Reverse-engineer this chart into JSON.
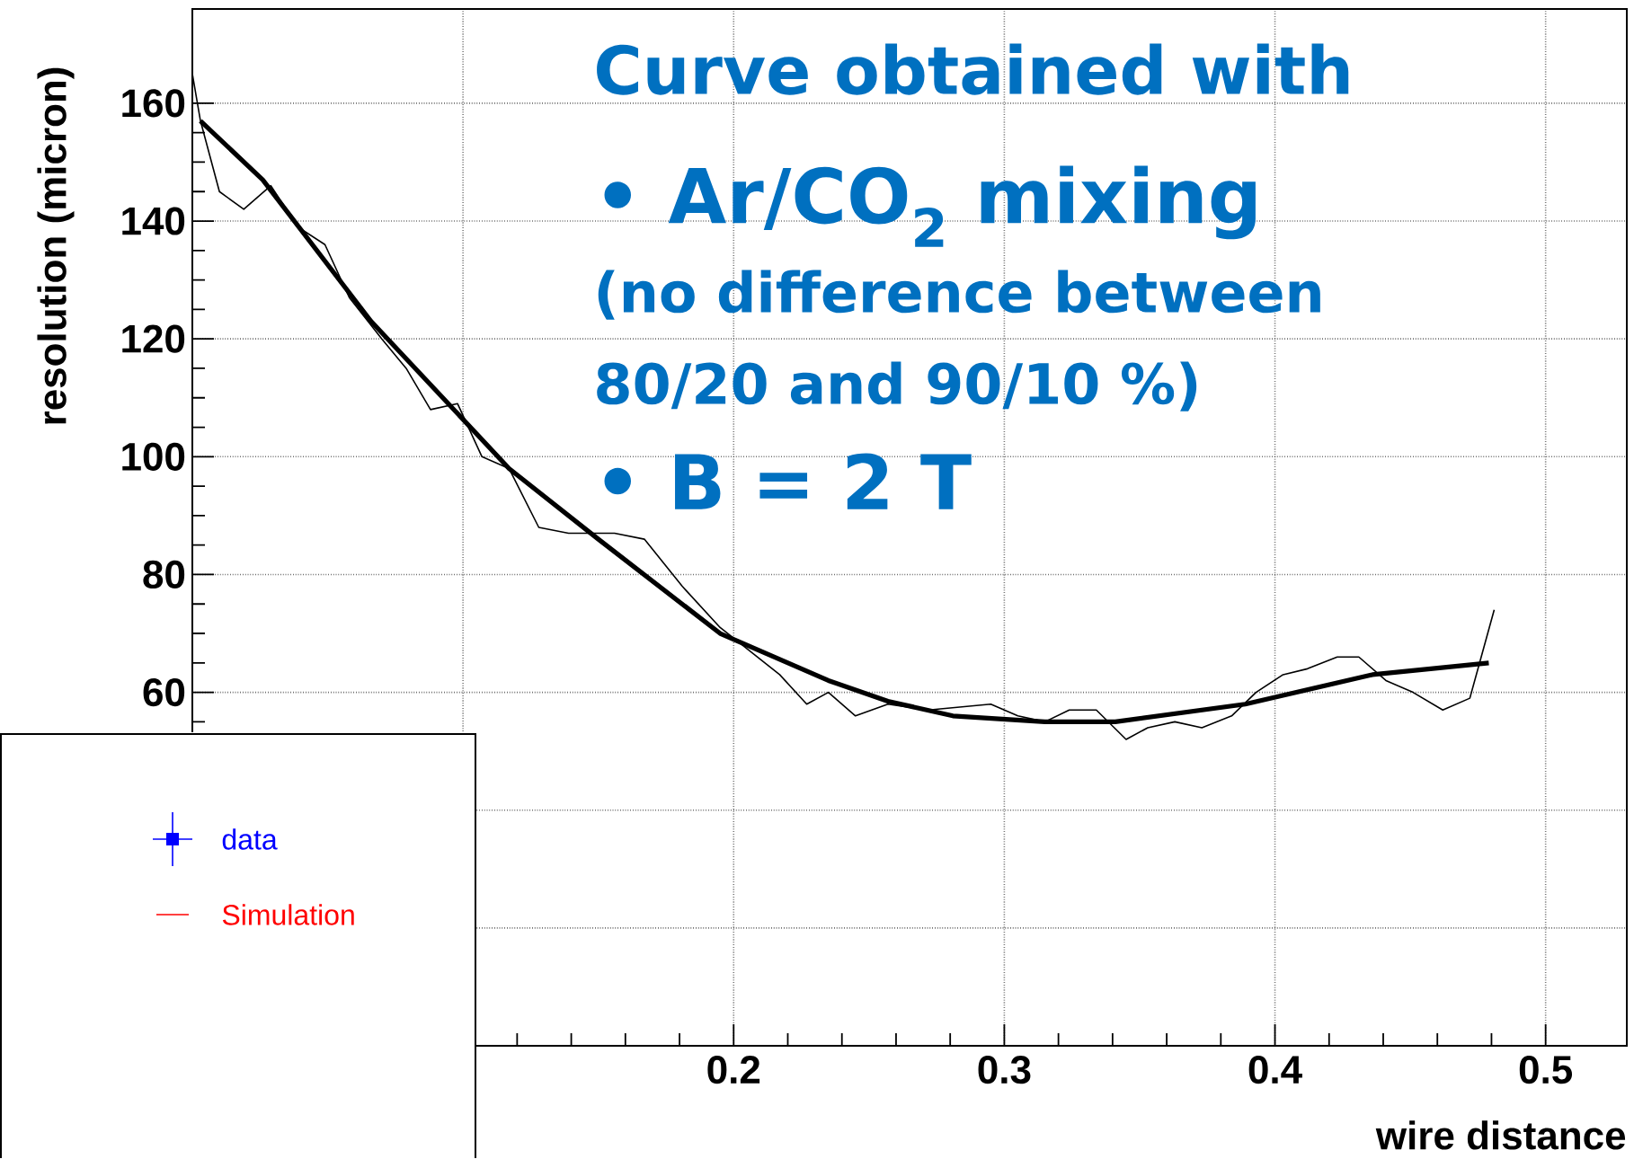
{
  "chart_data": {
    "type": "line",
    "xlabel": "wire distance",
    "ylabel": "resolution (micron)",
    "xlim": [
      0,
      0.53
    ],
    "ylim": [
      0,
      176
    ],
    "xticks": [
      {
        "value": 0.1,
        "label": null
      },
      0.2,
      0.3,
      0.4,
      0.5
    ],
    "yticks": [
      {
        "value": 20,
        "label": null
      },
      {
        "value": 40,
        "label": null
      },
      60,
      80,
      100,
      120,
      140,
      160
    ],
    "grid": true,
    "marker": "none",
    "annotations": [
      "Curve obtained with",
      "• Ar/CO$_{2}$ mixing",
      "(no difference between 80/20 and 90/10 %)",
      "• B = 2 T",
      "data",
      "Simulation"
    ],
    "series": [
      {
        "color": "#000000",
        "x": [
          0.0,
          0.003,
          0.01,
          0.019,
          0.029,
          0.039,
          0.049,
          0.058,
          0.07,
          0.079,
          0.088,
          0.098,
          0.107,
          0.117,
          0.128,
          0.139,
          0.156,
          0.167,
          0.181,
          0.195,
          0.217,
          0.227,
          0.235,
          0.245,
          0.257,
          0.272,
          0.295,
          0.305,
          0.315,
          0.324,
          0.334,
          0.345,
          0.353,
          0.363,
          0.373,
          0.384,
          0.393,
          0.403,
          0.412,
          0.423,
          0.431,
          0.441,
          0.451,
          0.462,
          0.472,
          0.481
        ],
        "values": [
          165,
          157,
          145,
          142,
          146,
          139,
          136,
          127,
          120,
          115,
          108,
          109,
          100,
          98,
          88,
          87,
          87,
          86,
          78,
          71,
          63,
          58,
          60,
          56,
          58,
          57,
          58,
          56,
          55,
          57,
          57,
          52,
          54,
          55,
          54,
          56,
          60,
          63,
          64,
          66,
          66,
          62,
          60,
          57,
          59,
          74
        ]
      },
      {
        "color": "#000000",
        "x": [
          0.003,
          0.026,
          0.066,
          0.117,
          0.15,
          0.195,
          0.235,
          0.257,
          0.281,
          0.315,
          0.341,
          0.389,
          0.436,
          0.479
        ],
        "values": [
          157,
          147,
          123,
          98,
          86,
          70,
          62,
          58.5,
          56,
          55,
          55,
          58,
          63,
          65
        ]
      }
    ]
  }
}
